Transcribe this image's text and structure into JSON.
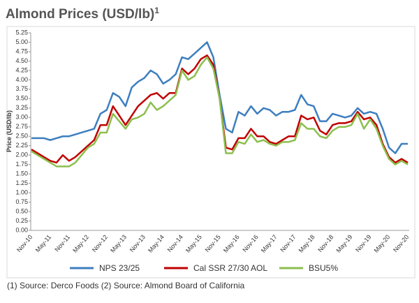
{
  "chart_data": {
    "type": "line",
    "title": "Almond Prices (USD/lb)",
    "title_superscript": "1",
    "y_label": "Price (USD/lb)",
    "source": "(1) Source: Derco Foods (2) Source: Almond Board of California",
    "categories": [
      "Nov-10",
      null,
      null,
      "May-11",
      null,
      null,
      "Nov-11",
      null,
      null,
      "May-12",
      null,
      null,
      "Nov-12",
      null,
      null,
      "May-13",
      null,
      null,
      "Nov-13",
      null,
      null,
      "May-14",
      null,
      null,
      "Nov-14",
      null,
      null,
      "May-15",
      null,
      null,
      "Nov-15",
      null,
      null,
      "May-16",
      null,
      null,
      "Nov-16",
      null,
      null,
      "May-17",
      null,
      null,
      "Nov-17",
      null,
      null,
      "May-18",
      null,
      null,
      "Nov-18",
      null,
      null,
      "May-19",
      null,
      null,
      "Nov-19",
      null,
      null,
      "May-20",
      null,
      null,
      "Nov-20"
    ],
    "series": [
      {
        "name": "NPS 23/25",
        "color": "#3d7ebf",
        "values": [
          2.45,
          2.45,
          2.45,
          2.4,
          2.45,
          2.5,
          2.5,
          2.55,
          2.6,
          2.65,
          2.7,
          3.1,
          3.2,
          3.65,
          3.55,
          3.3,
          3.8,
          3.95,
          4.05,
          4.25,
          4.15,
          3.9,
          4.0,
          4.15,
          4.6,
          4.55,
          4.7,
          4.85,
          5.0,
          4.6,
          3.6,
          2.7,
          2.6,
          3.15,
          3.05,
          3.3,
          3.1,
          3.25,
          3.2,
          3.05,
          3.15,
          3.15,
          3.2,
          3.6,
          3.35,
          3.3,
          2.9,
          2.9,
          3.1,
          3.05,
          3.0,
          3.05,
          3.25,
          3.1,
          3.15,
          3.1,
          2.7,
          2.2,
          2.05,
          2.3,
          2.3
        ]
      },
      {
        "name": "Cal SSR 27/30 AOL",
        "color": "#c00000",
        "values": [
          2.15,
          2.05,
          1.95,
          1.85,
          1.8,
          2.0,
          1.85,
          1.95,
          2.1,
          2.25,
          2.4,
          2.8,
          2.8,
          3.3,
          3.05,
          2.8,
          3.05,
          3.3,
          3.45,
          3.6,
          3.65,
          3.5,
          3.65,
          3.65,
          4.3,
          4.15,
          4.3,
          4.55,
          4.65,
          4.4,
          3.5,
          2.2,
          2.15,
          2.45,
          2.45,
          2.7,
          2.5,
          2.5,
          2.35,
          2.3,
          2.4,
          2.5,
          2.5,
          3.05,
          2.95,
          3.0,
          2.65,
          2.55,
          2.8,
          2.85,
          2.85,
          2.9,
          3.15,
          2.95,
          3.0,
          2.8,
          2.3,
          1.95,
          1.8,
          1.9,
          1.8
        ]
      },
      {
        "name": "BSU5%",
        "color": "#8cbf4e",
        "values": [
          2.1,
          2.0,
          1.9,
          1.8,
          1.7,
          1.7,
          1.7,
          1.8,
          2.0,
          2.2,
          2.3,
          2.6,
          2.6,
          3.1,
          2.9,
          2.7,
          2.95,
          3.0,
          3.1,
          3.4,
          3.2,
          3.3,
          3.45,
          3.6,
          4.25,
          4.0,
          4.1,
          4.4,
          4.6,
          4.3,
          3.5,
          2.05,
          2.05,
          2.35,
          2.3,
          2.55,
          2.35,
          2.4,
          2.3,
          2.25,
          2.35,
          2.35,
          2.4,
          2.85,
          2.7,
          2.7,
          2.5,
          2.45,
          2.65,
          2.75,
          2.75,
          2.8,
          3.1,
          2.7,
          2.95,
          2.7,
          2.25,
          1.9,
          1.75,
          1.85,
          1.75
        ]
      }
    ],
    "ylim": [
      0,
      5.25
    ],
    "yticks": [
      {
        "value": 0,
        "label": "0.00"
      },
      {
        "value": 0.25,
        "label": "0.25"
      },
      {
        "value": 0.5,
        "label": "0.50"
      },
      {
        "value": 0.75,
        "label": "0.75"
      },
      {
        "value": 1,
        "label": "1.00"
      },
      {
        "value": 1.25,
        "label": "1.25"
      },
      {
        "value": 1.5,
        "label": "1.50"
      },
      {
        "value": 1.75,
        "label": "1.75"
      },
      {
        "value": 2,
        "label": "2.00"
      },
      {
        "value": 2.25,
        "label": "2.25"
      },
      {
        "value": 2.5,
        "label": "2.50"
      },
      {
        "value": 2.75,
        "label": "2.75"
      },
      {
        "value": 3,
        "label": "3.00"
      },
      {
        "value": 3.25,
        "label": "3.25"
      },
      {
        "value": 3.5,
        "label": "3.50"
      },
      {
        "value": 3.75,
        "label": "3.75"
      },
      {
        "value": 4,
        "label": "4.00"
      },
      {
        "value": 4.25,
        "label": "4.25"
      },
      {
        "value": 4.5,
        "label": "4.50"
      },
      {
        "value": 4.75,
        "label": "4.75"
      },
      {
        "value": 5,
        "label": "5.00"
      },
      {
        "value": 5.25,
        "label": "5.25"
      }
    ],
    "grid": false,
    "legend": "bottom"
  }
}
